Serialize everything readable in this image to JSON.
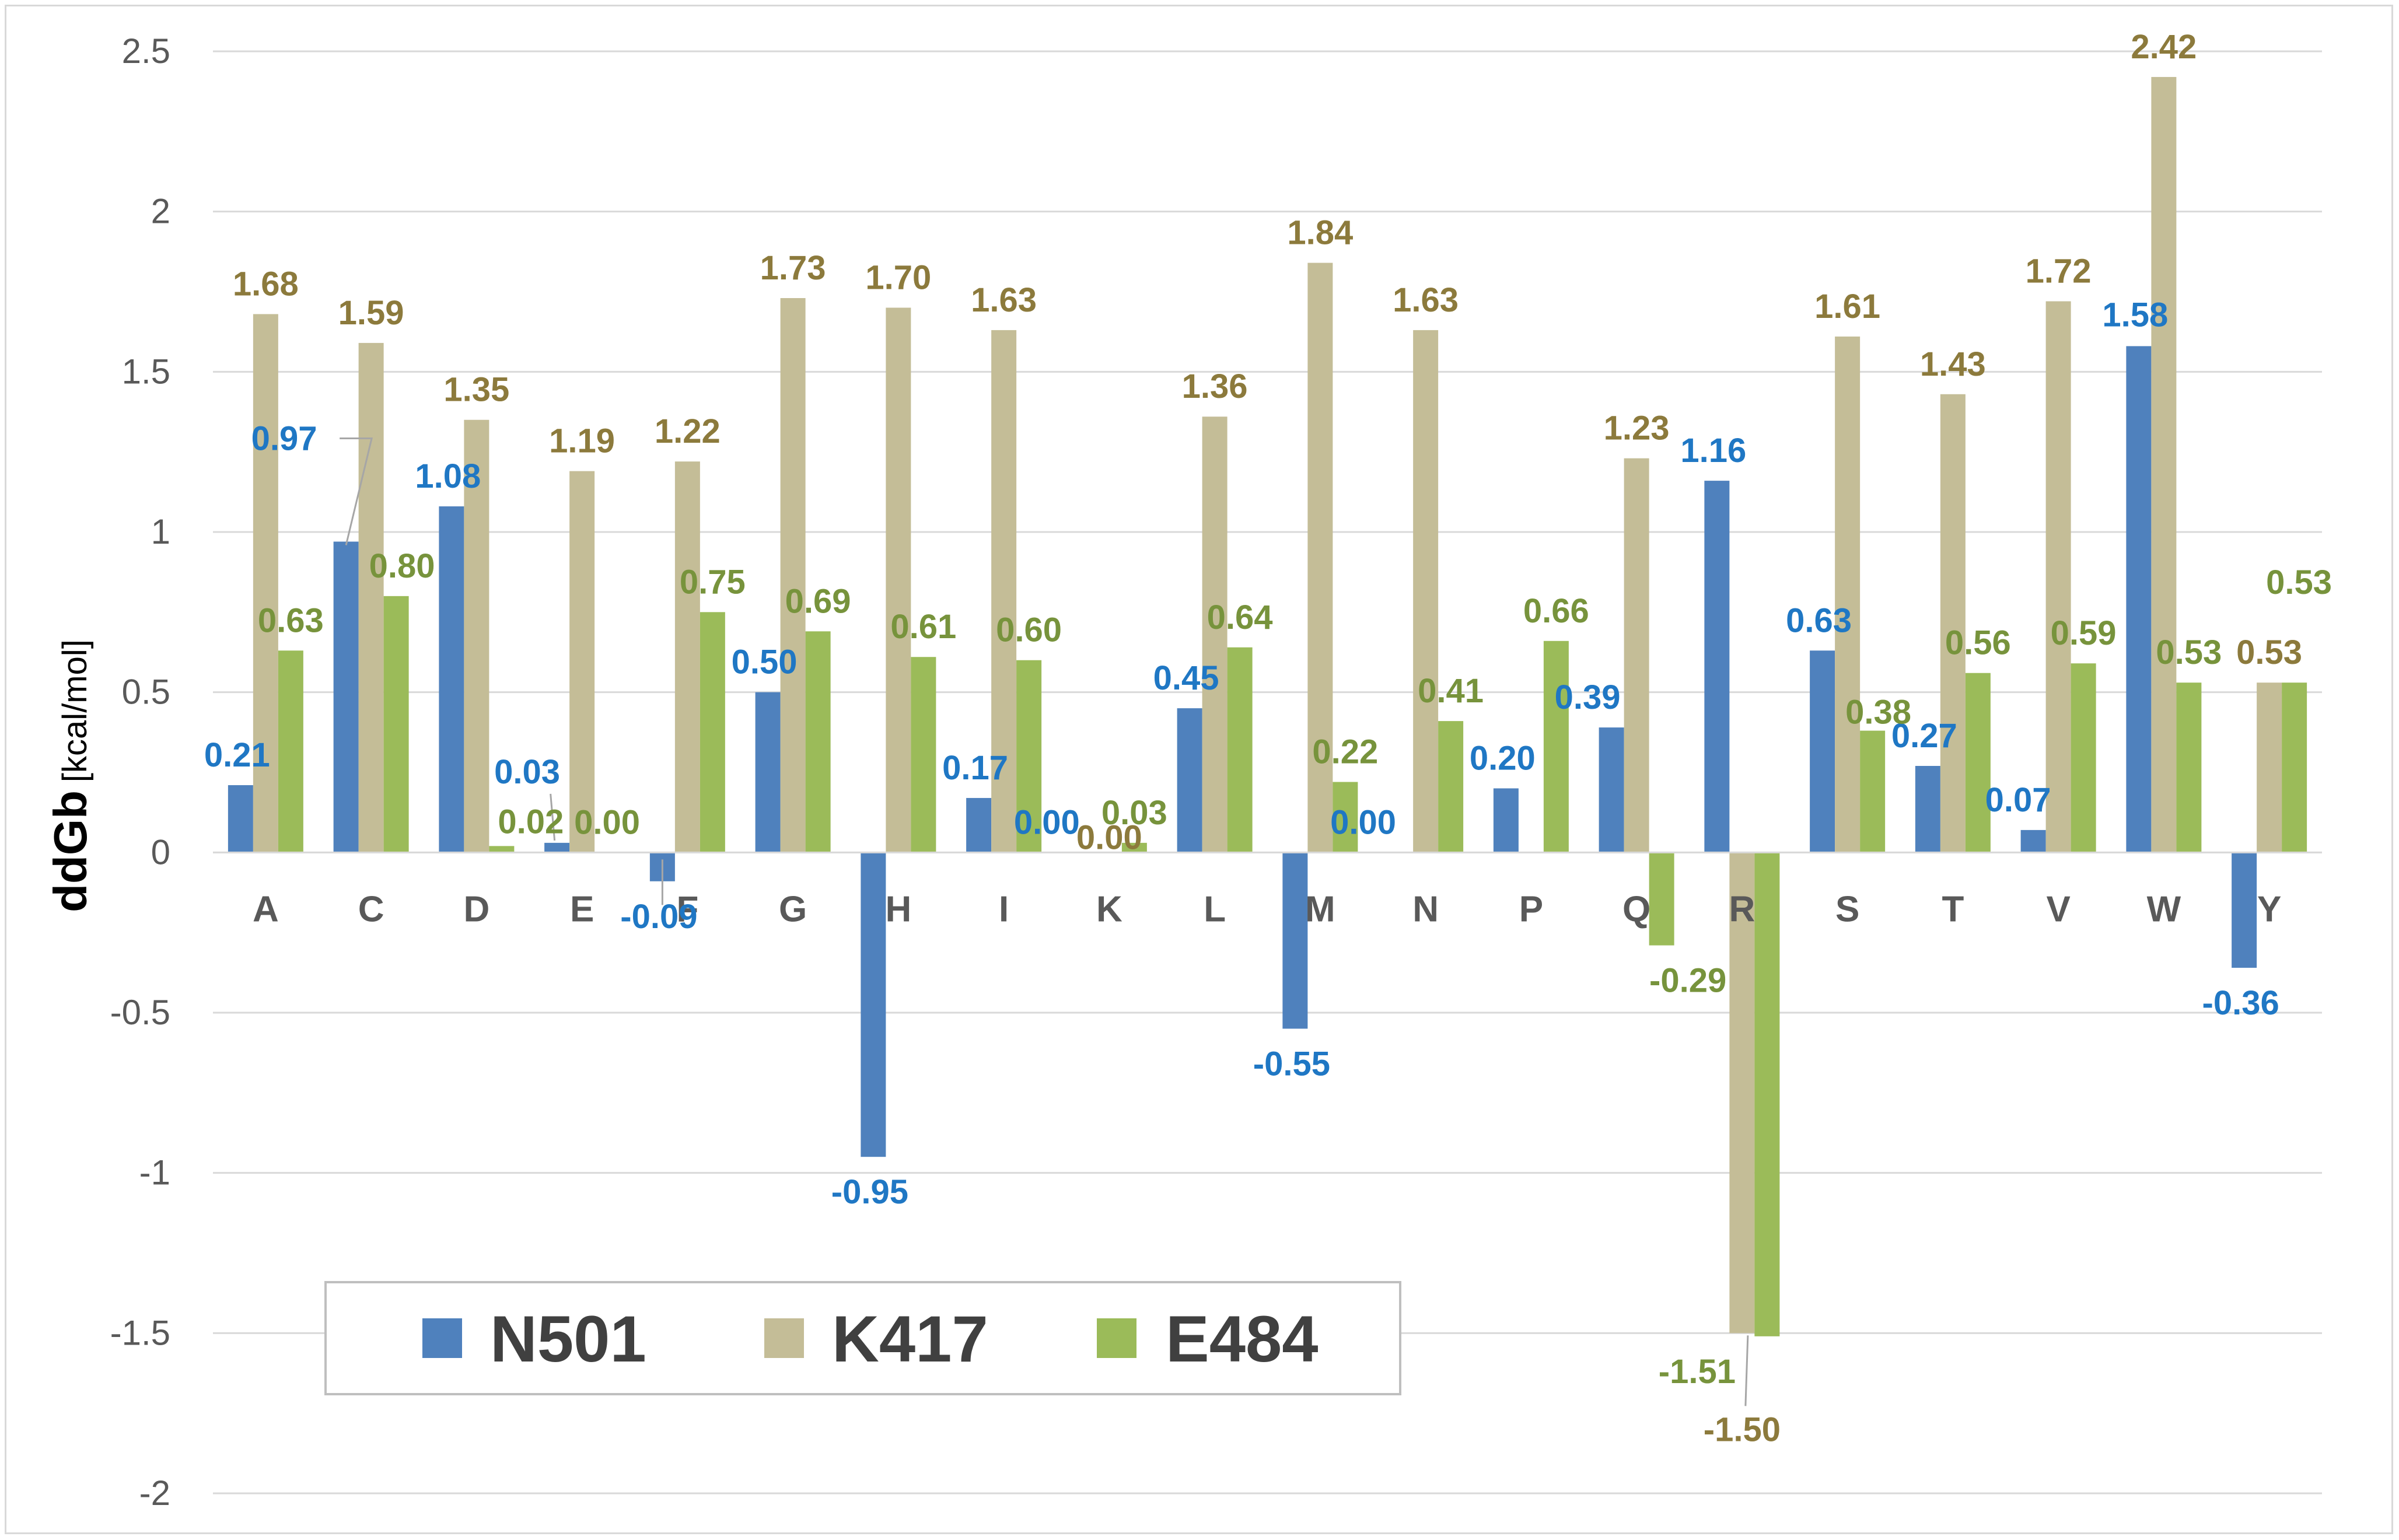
{
  "chart_data": {
    "type": "bar",
    "title": "",
    "xlabel": "",
    "ylabel": "ddGb",
    "ylabel_unit": "[kcal/mol]",
    "ylim": [
      -2,
      2.5
    ],
    "yticks": [
      2.5,
      2,
      1.5,
      1,
      0.5,
      0,
      -0.5,
      -1,
      -1.5,
      -2
    ],
    "ytick_labels": [
      "2.5",
      "2",
      "1.5",
      "1",
      "0.5",
      "0",
      "-0.5",
      "-1",
      "-1.5",
      "-2"
    ],
    "grid": true,
    "legend_position": "bottom-left",
    "categories": [
      "A",
      "C",
      "D",
      "E",
      "F",
      "G",
      "H",
      "I",
      "K",
      "L",
      "M",
      "N",
      "P",
      "Q",
      "R",
      "S",
      "T",
      "V",
      "W",
      "Y"
    ],
    "series": [
      {
        "name": "N501",
        "color": "#4f81bd",
        "label_color": "#1f77c4",
        "values": [
          0.21,
          0.97,
          1.08,
          0.03,
          -0.09,
          0.5,
          -0.95,
          0.17,
          0.0,
          0.45,
          -0.55,
          0.0,
          0.2,
          0.39,
          1.16,
          0.63,
          0.27,
          0.07,
          1.58,
          -0.36
        ],
        "labels": [
          "0.21",
          "0.97",
          "1.08",
          "0.03",
          "-0.09",
          "0.50",
          "-0.95",
          "0.17",
          "0.00",
          "0.45",
          "-0.55",
          "0.00",
          "0.20",
          "0.39",
          "1.16",
          "0.63",
          "0.27",
          "0.07",
          "1.58",
          "-0.36"
        ]
      },
      {
        "name": "K417",
        "color": "#c4bd97",
        "label_color": "#8c7a3c",
        "values": [
          1.68,
          1.59,
          1.35,
          1.19,
          1.22,
          1.73,
          1.7,
          1.63,
          0.0,
          1.36,
          1.84,
          1.63,
          null,
          1.23,
          -1.5,
          1.61,
          1.43,
          1.72,
          2.42,
          0.53
        ],
        "labels": [
          "1.68",
          "1.59",
          "1.35",
          "1.19",
          "1.22",
          "1.73",
          "1.70",
          "1.63",
          "0.00",
          "1.36",
          "1.84",
          "1.63",
          null,
          "1.23",
          "-1.50",
          "1.61",
          "1.43",
          "1.72",
          "2.42",
          "0.53"
        ]
      },
      {
        "name": "E484",
        "color": "#9bbb59",
        "label_color": "#77933c",
        "values": [
          0.63,
          0.8,
          0.02,
          0.0,
          0.75,
          0.69,
          0.61,
          0.6,
          0.03,
          0.64,
          0.22,
          0.41,
          0.66,
          -0.29,
          -1.51,
          0.38,
          0.56,
          0.59,
          0.53,
          0.53
        ],
        "labels": [
          "0.63",
          "0.80",
          "0.02",
          "0.00",
          "0.75",
          "0.69",
          "0.61",
          "0.60",
          "0.03",
          "0.64",
          "0.22",
          "0.41",
          "0.66",
          "-0.29",
          "-1.51",
          "0.38",
          "0.56",
          "0.59",
          "0.53",
          "0.53"
        ]
      }
    ]
  }
}
